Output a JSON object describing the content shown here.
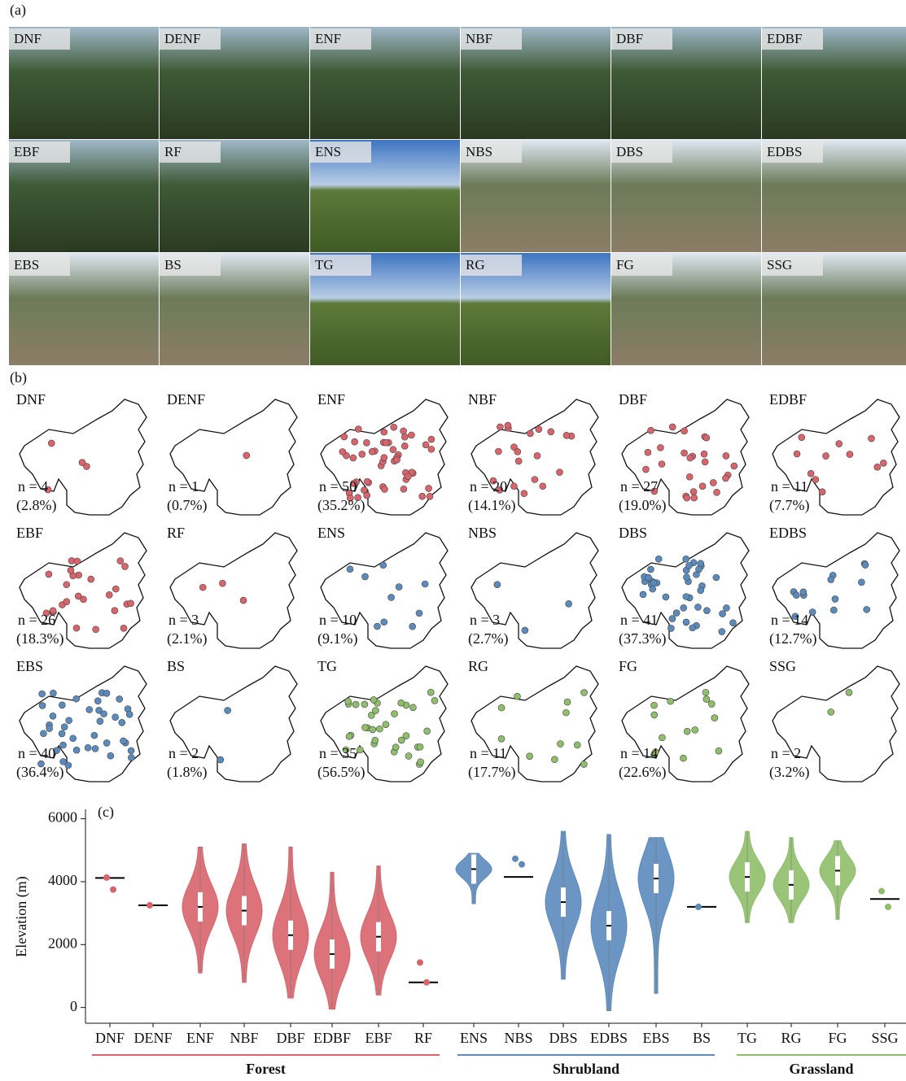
{
  "panel_a": {
    "label": "(a)",
    "photos": [
      "DNF",
      "DENF",
      "ENF",
      "NBF",
      "DBF",
      "EDBF",
      "EBF",
      "RF",
      "ENS",
      "NBS",
      "DBS",
      "EDBS",
      "EBS",
      "BS",
      "TG",
      "RG",
      "FG",
      "SSG"
    ]
  },
  "panel_b": {
    "label": "(b)",
    "maps": [
      {
        "label": "DNF",
        "n": "n = 4",
        "share": "(2.8%)",
        "color": "#d9646c"
      },
      {
        "label": "DENF",
        "n": "n = 1",
        "share": "(0.7%)",
        "color": "#d9646c"
      },
      {
        "label": "ENF",
        "n": "n = 50",
        "share": "(35.2%)",
        "color": "#d9646c"
      },
      {
        "label": "NBF",
        "n": "n = 20",
        "share": "(14.1%)",
        "color": "#d9646c"
      },
      {
        "label": "DBF",
        "n": "n = 27",
        "share": "(19.0%)",
        "color": "#d9646c"
      },
      {
        "label": "EDBF",
        "n": "n = 11",
        "share": "(7.7%)",
        "color": "#d9646c"
      },
      {
        "label": "EBF",
        "n": "n = 26",
        "share": "(18.3%)",
        "color": "#d9646c"
      },
      {
        "label": "RF",
        "n": "n = 3",
        "share": "(2.1%)",
        "color": "#d9646c"
      },
      {
        "label": "ENS",
        "n": "n = 10",
        "share": "(9.1%)",
        "color": "#5b8bbd"
      },
      {
        "label": "NBS",
        "n": "n = 3",
        "share": "(2.7%)",
        "color": "#5b8bbd"
      },
      {
        "label": "DBS",
        "n": "n = 41",
        "share": "(37.3%)",
        "color": "#5b8bbd"
      },
      {
        "label": "EDBS",
        "n": "n = 14",
        "share": "(12.7%)",
        "color": "#5b8bbd"
      },
      {
        "label": "EBS",
        "n": "n = 40",
        "share": "(36.4%)",
        "color": "#5b8bbd"
      },
      {
        "label": "BS",
        "n": "n = 2",
        "share": "(1.8%)",
        "color": "#5b8bbd"
      },
      {
        "label": "TG",
        "n": "n = 35",
        "share": "(56.5%)",
        "color": "#8fbf6a"
      },
      {
        "label": "RG",
        "n": "n = 11",
        "share": "(17.7%)",
        "color": "#8fbf6a"
      },
      {
        "label": "FG",
        "n": "n = 14",
        "share": "(22.6%)",
        "color": "#8fbf6a"
      },
      {
        "label": "SSG",
        "n": "n = 2",
        "share": "(3.2%)",
        "color": "#8fbf6a"
      }
    ]
  },
  "chart_data": {
    "type": "violin",
    "panel_label": "(c)",
    "y_label": "Elevation (m)",
    "ylim": [
      -500,
      6300
    ],
    "yticks": [
      0,
      2000,
      4000,
      6000
    ],
    "series": [
      {
        "name": "Forest",
        "color": "#d9646c",
        "categories": [
          "DNF",
          "DENF",
          "ENF",
          "NBF",
          "DBF",
          "EDBF",
          "EBF",
          "RF"
        ],
        "values": [
          4120,
          3250,
          3200,
          3080,
          2300,
          1700,
          2250,
          800
        ],
        "ranges": [
          null,
          null,
          [
            1100,
            5100
          ],
          [
            800,
            5200
          ],
          [
            300,
            5100
          ],
          [
            -50,
            4300
          ],
          [
            400,
            4500
          ],
          null
        ],
        "points": [
          [
            4130,
            3750
          ],
          [
            3250
          ],
          [],
          [],
          [],
          [],
          [],
          [
            1430,
            800
          ]
        ]
      },
      {
        "name": "Shrubland",
        "color": "#5b8bbd",
        "categories": [
          "ENS",
          "NBS",
          "DBS",
          "EDBS",
          "EBS",
          "BS"
        ],
        "values": [
          4400,
          4150,
          3350,
          2600,
          4100,
          3200
        ],
        "ranges": [
          [
            3300,
            4900
          ],
          null,
          [
            900,
            5600
          ],
          [
            -100,
            5500
          ],
          [
            450,
            5400
          ],
          null
        ],
        "points": [
          [],
          [
            4730,
            4550
          ],
          [],
          [],
          [],
          [
            3200
          ]
        ]
      },
      {
        "name": "Grassland",
        "color": "#8fbf6a",
        "categories": [
          "TG",
          "RG",
          "FG",
          "SSG"
        ],
        "values": [
          4150,
          3900,
          4350,
          3450
        ],
        "ranges": [
          [
            2700,
            5600
          ],
          [
            2700,
            5400
          ],
          [
            2800,
            5300
          ],
          null
        ],
        "points": [
          [],
          [],
          [],
          [
            3700,
            3200
          ]
        ]
      }
    ]
  }
}
